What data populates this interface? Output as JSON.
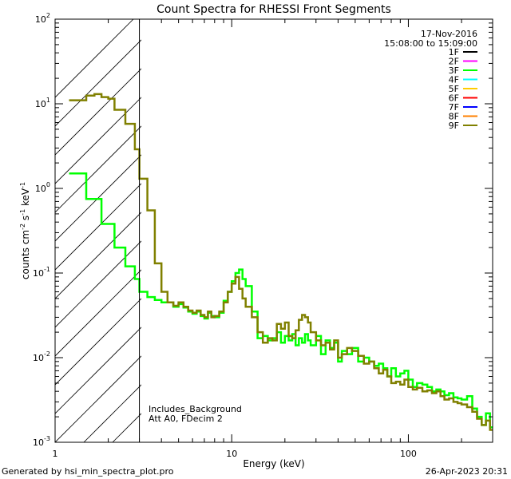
{
  "chart_data": {
    "type": "line",
    "title": "Count Spectra for RHESSI Front Segments",
    "xlabel": "Energy (keV)",
    "ylabel_parts": [
      "counts cm",
      "-2",
      " s",
      "-1",
      " keV",
      "-1"
    ],
    "xscale": "log",
    "yscale": "log",
    "xlim": [
      1,
      300
    ],
    "ylim": [
      0.001,
      100
    ],
    "x_ticks": [
      {
        "label": "1",
        "value": 1
      },
      {
        "label": "10",
        "value": 10
      },
      {
        "label": "100",
        "value": 100
      }
    ],
    "y_ticks": [
      {
        "base": "10",
        "exp": "-3",
        "value": 0.001
      },
      {
        "base": "10",
        "exp": "-2",
        "value": 0.01
      },
      {
        "base": "10",
        "exp": "-1",
        "value": 0.1
      },
      {
        "base": "10",
        "exp": "0",
        "value": 1
      },
      {
        "base": "10",
        "exp": "1",
        "value": 10
      },
      {
        "base": "10",
        "exp": "2",
        "value": 100
      }
    ],
    "date": "17-Nov-2016",
    "time_range": "15:08:00 to 15:09:00",
    "hatched_region": {
      "x_from": 1,
      "x_to": 3
    },
    "annotations": [
      "Includes_Background",
      "Att A0, FDecim 2"
    ],
    "legend": [
      {
        "name": "1F",
        "color": "#000000"
      },
      {
        "name": "2F",
        "color": "#ff00ff"
      },
      {
        "name": "3F",
        "color": "#00ff00"
      },
      {
        "name": "4F",
        "color": "#00ffff"
      },
      {
        "name": "5F",
        "color": "#ffcc00"
      },
      {
        "name": "6F",
        "color": "#ff0000"
      },
      {
        "name": "7F",
        "color": "#0000ff"
      },
      {
        "name": "8F",
        "color": "#ff8000"
      },
      {
        "name": "9F",
        "color": "#808000"
      }
    ],
    "series": [
      {
        "name": "3F",
        "color": "#00ff00",
        "x": [
          1.2,
          1.33,
          1.5,
          1.67,
          1.83,
          2.0,
          2.17,
          2.33,
          2.5,
          2.67,
          2.83,
          3.0,
          3.33,
          3.67,
          4.0,
          4.33,
          4.67,
          5.0,
          5.33,
          5.67,
          6.0,
          6.33,
          6.67,
          7.0,
          7.33,
          7.67,
          8.0,
          8.5,
          9.0,
          9.5,
          10.0,
          10.5,
          11.0,
          11.5,
          12.0,
          13,
          14,
          15,
          16,
          17,
          18,
          19,
          20,
          21,
          22,
          23,
          24,
          25,
          26,
          27,
          28,
          30,
          32,
          34,
          36,
          38,
          40,
          42,
          45,
          48,
          52,
          56,
          60,
          64,
          68,
          72,
          76,
          80,
          85,
          90,
          95,
          100,
          106,
          112,
          120,
          128,
          136,
          144,
          152,
          160,
          170,
          180,
          190,
          200,
          215,
          230,
          245,
          260,
          275,
          290
        ],
        "y": [
          1.5,
          1.5,
          0.75,
          0.75,
          0.38,
          0.38,
          0.2,
          0.2,
          0.12,
          0.12,
          0.085,
          0.06,
          0.052,
          0.048,
          0.045,
          0.045,
          0.04,
          0.043,
          0.039,
          0.035,
          0.033,
          0.035,
          0.031,
          0.029,
          0.034,
          0.031,
          0.03,
          0.034,
          0.047,
          0.06,
          0.08,
          0.1,
          0.11,
          0.085,
          0.07,
          0.035,
          0.017,
          0.018,
          0.016,
          0.017,
          0.02,
          0.015,
          0.018,
          0.016,
          0.019,
          0.014,
          0.017,
          0.015,
          0.019,
          0.016,
          0.014,
          0.018,
          0.011,
          0.016,
          0.013,
          0.015,
          0.009,
          0.012,
          0.011,
          0.013,
          0.009,
          0.01,
          0.009,
          0.008,
          0.0085,
          0.0075,
          0.006,
          0.0075,
          0.006,
          0.0065,
          0.007,
          0.0055,
          0.0045,
          0.005,
          0.0048,
          0.0045,
          0.004,
          0.0042,
          0.004,
          0.0036,
          0.0038,
          0.0034,
          0.0033,
          0.0032,
          0.0035,
          0.0025,
          0.002,
          0.0016,
          0.0022,
          0.0015
        ]
      },
      {
        "name": "9F",
        "color": "#808000",
        "x": [
          1.2,
          1.33,
          1.5,
          1.67,
          1.83,
          2.0,
          2.17,
          2.33,
          2.5,
          2.67,
          2.83,
          3.0,
          3.33,
          3.67,
          4.0,
          4.33,
          4.67,
          5.0,
          5.33,
          5.67,
          6.0,
          6.33,
          6.67,
          7.0,
          7.33,
          7.67,
          8.0,
          8.5,
          9.0,
          9.5,
          10.0,
          10.5,
          11.0,
          11.5,
          12.0,
          13,
          14,
          15,
          16,
          17,
          18,
          19,
          20,
          21,
          22,
          23,
          24,
          25,
          26,
          27,
          28,
          30,
          32,
          34,
          36,
          38,
          40,
          42,
          45,
          48,
          52,
          56,
          60,
          64,
          68,
          72,
          76,
          80,
          85,
          90,
          95,
          100,
          106,
          112,
          120,
          128,
          136,
          144,
          152,
          160,
          170,
          180,
          190,
          200,
          215,
          230,
          245,
          260,
          275,
          290
        ],
        "y": [
          11,
          11,
          12.5,
          13,
          12,
          11.5,
          8.5,
          8.5,
          5.8,
          5.8,
          2.9,
          1.3,
          0.55,
          0.13,
          0.06,
          0.045,
          0.041,
          0.045,
          0.04,
          0.036,
          0.034,
          0.036,
          0.032,
          0.03,
          0.035,
          0.03,
          0.031,
          0.035,
          0.045,
          0.06,
          0.075,
          0.09,
          0.065,
          0.05,
          0.04,
          0.03,
          0.02,
          0.015,
          0.017,
          0.016,
          0.025,
          0.022,
          0.026,
          0.018,
          0.017,
          0.021,
          0.028,
          0.032,
          0.03,
          0.026,
          0.02,
          0.016,
          0.014,
          0.015,
          0.0125,
          0.016,
          0.01,
          0.011,
          0.013,
          0.012,
          0.0105,
          0.0085,
          0.009,
          0.0075,
          0.0065,
          0.0072,
          0.006,
          0.005,
          0.0052,
          0.0048,
          0.0055,
          0.0045,
          0.0042,
          0.0044,
          0.004,
          0.0041,
          0.0038,
          0.004,
          0.0035,
          0.0032,
          0.0033,
          0.003,
          0.0029,
          0.0028,
          0.0026,
          0.0023,
          0.0019,
          0.0016,
          0.0018,
          0.0014
        ]
      }
    ]
  },
  "footer": {
    "left": "Generated by hsi_min_spectra_plot.pro",
    "right": "26-Apr-2023 20:31"
  }
}
